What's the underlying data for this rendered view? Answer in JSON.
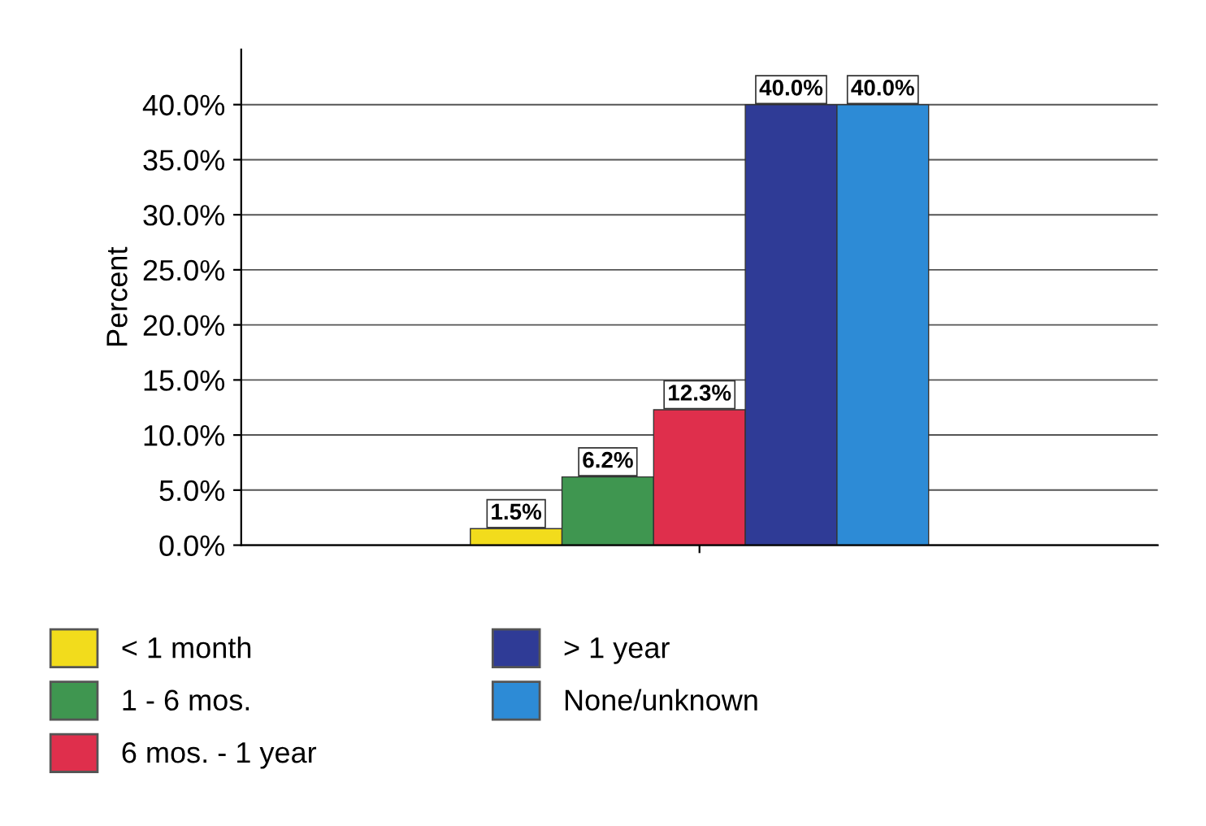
{
  "chart_data": {
    "type": "bar",
    "ylabel": "Percent",
    "categories": [
      null
    ],
    "series": [
      {
        "name": "< 1 month",
        "color": "#f2dc1c",
        "values": [
          1.5
        ],
        "value_labels": [
          "1.5%"
        ]
      },
      {
        "name": "1 - 6 mos.",
        "color": "#3f9650",
        "values": [
          6.2
        ],
        "value_labels": [
          "6.2%"
        ]
      },
      {
        "name": "6 mos. - 1 year",
        "color": "#df2f4c",
        "values": [
          12.3
        ],
        "value_labels": [
          "12.3%"
        ]
      },
      {
        "name": "> 1 year",
        "color": "#2f3b96",
        "values": [
          40.0
        ],
        "value_labels": [
          "40.0%"
        ]
      },
      {
        "name": "None/unknown",
        "color": "#2d8bd6",
        "values": [
          40.0
        ],
        "value_labels": [
          "40.0%"
        ]
      }
    ],
    "ylim": [
      0,
      45
    ],
    "yticks": [
      {
        "value": 0,
        "label": "0.0%"
      },
      {
        "value": 5,
        "label": "5.0%"
      },
      {
        "value": 10,
        "label": "10.0%"
      },
      {
        "value": 15,
        "label": "15.0%"
      },
      {
        "value": 20,
        "label": "20.0%"
      },
      {
        "value": 25,
        "label": "25.0%"
      },
      {
        "value": 30,
        "label": "30.0%"
      },
      {
        "value": 35,
        "label": "35.0%"
      },
      {
        "value": 40,
        "label": "40.0%"
      }
    ],
    "grid": "y",
    "legend": "bottom"
  }
}
